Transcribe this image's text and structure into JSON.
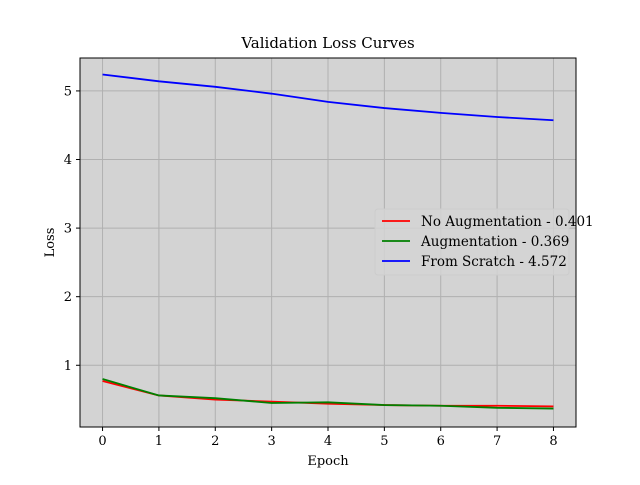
{
  "chart_data": {
    "type": "line",
    "title": "Validation Loss Curves",
    "xlabel": "Epoch",
    "ylabel": "Loss",
    "x": [
      0,
      1,
      2,
      3,
      4,
      5,
      6,
      7,
      8
    ],
    "xlim": [
      -0.4,
      8.4
    ],
    "ylim": [
      0.1,
      5.48
    ],
    "xticks": [
      "0",
      "1",
      "2",
      "3",
      "4",
      "5",
      "6",
      "7",
      "8"
    ],
    "yticks": [
      "1",
      "2",
      "3",
      "4",
      "5"
    ],
    "grid": true,
    "background_color": "#d3d3d3",
    "grid_color": "#b0b0b0",
    "legend_position": "center-right",
    "series": [
      {
        "name": "No Augmentation - 0.401",
        "color": "#ff0000",
        "values": [
          0.77,
          0.56,
          0.5,
          0.47,
          0.44,
          0.42,
          0.41,
          0.41,
          0.401
        ]
      },
      {
        "name": "Augmentation - 0.369",
        "color": "#008000",
        "values": [
          0.8,
          0.56,
          0.52,
          0.45,
          0.46,
          0.42,
          0.41,
          0.38,
          0.369
        ]
      },
      {
        "name": "From Scratch - 4.572",
        "color": "#0000ff",
        "values": [
          5.24,
          5.14,
          5.06,
          4.96,
          4.84,
          4.75,
          4.68,
          4.62,
          4.572
        ]
      }
    ]
  }
}
